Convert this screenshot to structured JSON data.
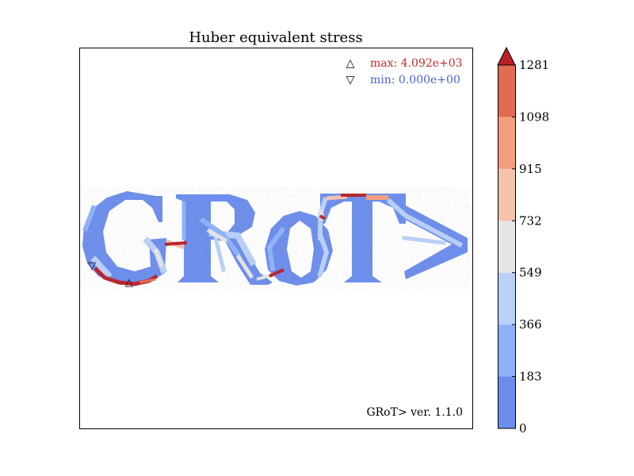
{
  "chart_data": {
    "type": "heatmap",
    "title": "Huber equivalent stress",
    "credit": "GRoT> ver. 1.1.0",
    "legend": {
      "max": {
        "marker": "△",
        "label": "max: 4.092e+03",
        "color": "#c0282d"
      },
      "min": {
        "marker": "▽",
        "label": "min: 0.000e+00",
        "color": "#4462d4"
      }
    },
    "colorbar": {
      "ticks": [
        "0",
        "183",
        "366",
        "549",
        "732",
        "915",
        "1098",
        "1281"
      ],
      "levels": [
        0,
        183,
        366,
        549,
        732,
        915,
        1098,
        1281
      ],
      "colors": [
        "#6a8ced",
        "#8fb1fa",
        "#b9d0f9",
        "#e5e5e5",
        "#f3c3ab",
        "#f49e7e",
        "#e36b53"
      ],
      "overflow_color": "#b91f29",
      "extend": "max"
    },
    "grid": false,
    "shape_text": "GRoT>",
    "markers": {
      "max_marker": "△",
      "min_marker": "▽"
    }
  }
}
